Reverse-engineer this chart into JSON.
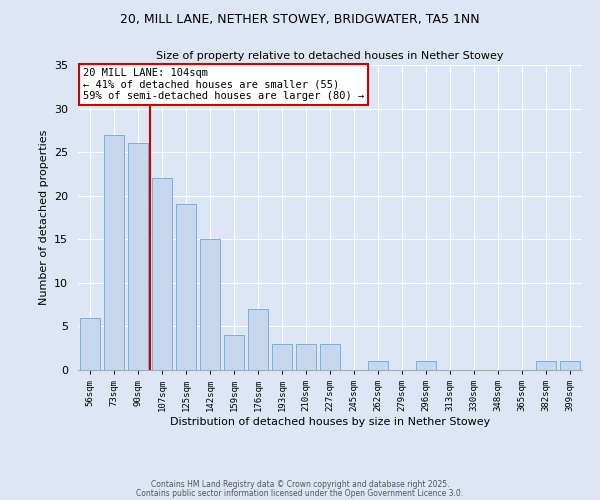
{
  "title1": "20, MILL LANE, NETHER STOWEY, BRIDGWATER, TA5 1NN",
  "title2": "Size of property relative to detached houses in Nether Stowey",
  "xlabel": "Distribution of detached houses by size in Nether Stowey",
  "ylabel": "Number of detached properties",
  "bins": [
    56,
    73,
    90,
    107,
    125,
    142,
    159,
    176,
    193,
    210,
    227,
    245,
    262,
    279,
    296,
    313,
    330,
    348,
    365,
    382,
    399
  ],
  "values": [
    6,
    27,
    26,
    22,
    19,
    15,
    4,
    7,
    3,
    3,
    3,
    0,
    1,
    0,
    1,
    0,
    0,
    0,
    0,
    1,
    1
  ],
  "bar_color": "#c5d8f0",
  "bar_edge_color": "#7aafd4",
  "vline_x": 107,
  "vline_color": "#cc0000",
  "annotation_title": "20 MILL LANE: 104sqm",
  "annotation_line1": "← 41% of detached houses are smaller (55)",
  "annotation_line2": "59% of semi-detached houses are larger (80) →",
  "annotation_box_color": "white",
  "annotation_box_edge": "#cc0000",
  "ylim": [
    0,
    35
  ],
  "yticks": [
    0,
    5,
    10,
    15,
    20,
    25,
    30,
    35
  ],
  "background_color": "#dde6f5",
  "footer1": "Contains HM Land Registry data © Crown copyright and database right 2025.",
  "footer2": "Contains public sector information licensed under the Open Government Licence 3.0."
}
